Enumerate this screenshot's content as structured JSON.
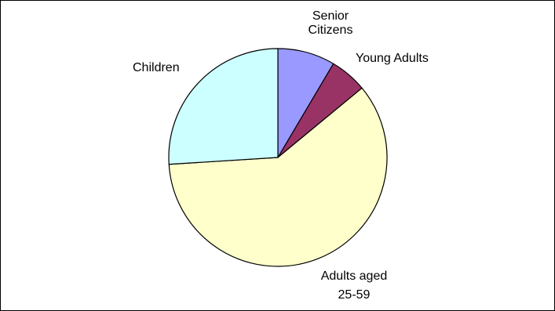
{
  "chart_data": {
    "type": "pie",
    "title": "",
    "categories": [
      "Senior Citizens",
      "Young Adults",
      "Adults aged 25-59",
      "Children"
    ],
    "values": [
      8.5,
      5.5,
      60.0,
      26.0
    ],
    "units": "percent (estimated)",
    "start_angle_deg": 0,
    "direction": "clockwise",
    "legend": "none",
    "colors": [
      "#9999ff",
      "#993366",
      "#ffffcc",
      "#ccffff"
    ],
    "labels": {
      "senior": [
        "Senior",
        "Citizens"
      ],
      "young": [
        "Young Adults"
      ],
      "adults": [
        "Adults aged",
        "25-59"
      ],
      "children": [
        "Children"
      ]
    }
  }
}
